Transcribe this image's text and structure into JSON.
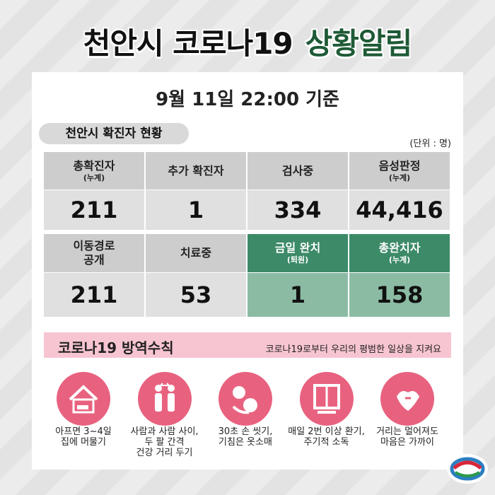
{
  "header": {
    "title_main": "천안시 코로나19",
    "title_accent": "상황알림"
  },
  "date": "9월 11일 22:00 기준",
  "status": {
    "title": "천안시 확진자 현황",
    "unit": "(단위 : 명)",
    "cells": [
      {
        "label": [
          "총확진자"
        ],
        "sublabel": "(누계)",
        "value": "211"
      },
      {
        "label": [
          "추가 확진자"
        ],
        "value": "1"
      },
      {
        "label": [
          "검사중"
        ],
        "value": "334"
      },
      {
        "label": [
          "음성판정"
        ],
        "sublabel": "(누계)",
        "value": "44,416"
      },
      {
        "label": [
          "이동경로",
          "공개"
        ],
        "value": "211"
      },
      {
        "label": [
          "치료중"
        ],
        "value": "53"
      },
      {
        "label": [
          "금일 완치"
        ],
        "sublabel": "(퇴원)",
        "value": "1"
      },
      {
        "label": [
          "총완치자"
        ],
        "sublabel": "(누계)",
        "value": "158"
      }
    ]
  },
  "rules": {
    "title": "코로나19 방역수칙",
    "slogan": "코로나19로부터 우리의 평범한 일상을 지켜요",
    "items": [
      [
        "아프면 3~4일",
        "집에 머물기"
      ],
      [
        "사람과 사람 사이,",
        "두 팔 간격",
        "건강 거리 두기"
      ],
      [
        "30초 손 씻기,",
        "기침은 옷소매"
      ],
      [
        "매일 2번 이상 환기,",
        "주기적 소독"
      ],
      [
        "거리는 멀어져도",
        "마음은 가까이"
      ]
    ]
  }
}
